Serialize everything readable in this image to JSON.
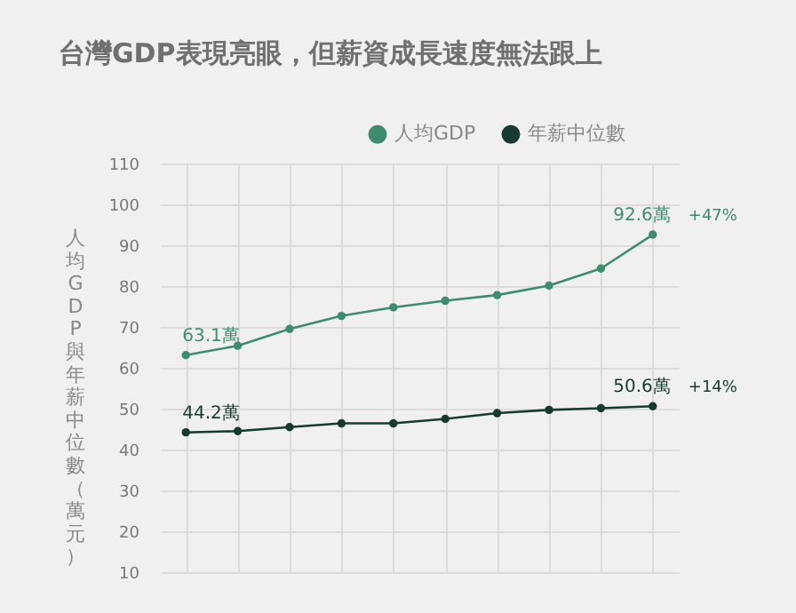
{
  "chart_data": {
    "type": "line",
    "title": "台灣GDP表現亮眼，但薪資成長速度無法跟上",
    "ylabel": "人均GDP與年薪中位數（萬元）",
    "categories": [
      null,
      null,
      null,
      null,
      null,
      null,
      null,
      null,
      null,
      null
    ],
    "series": [
      {
        "name": "人均GDP",
        "color": "#3d8c6f",
        "values": [
          63.1,
          65.4,
          69.5,
          72.7,
          74.8,
          76.4,
          77.8,
          80.1,
          84.3,
          92.6
        ],
        "value_labels": [
          "63.1萬",
          null,
          null,
          null,
          null,
          null,
          null,
          null,
          null,
          "92.6萬"
        ]
      },
      {
        "name": "年薪中位數",
        "color": "#163a2f",
        "values": [
          44.2,
          44.5,
          45.5,
          46.4,
          46.4,
          47.5,
          48.9,
          49.7,
          50.1,
          50.6
        ],
        "value_labels": [
          "44.2萬",
          null,
          null,
          null,
          null,
          null,
          null,
          null,
          null,
          "50.6萬"
        ]
      }
    ],
    "annotations": [
      "+47%",
      "+14%"
    ],
    "ylim": [
      10,
      110
    ],
    "yticks": [
      10,
      20,
      30,
      40,
      50,
      60,
      70,
      80,
      90,
      100,
      110
    ],
    "grid": true,
    "legend": "top",
    "marker": "circle",
    "line_style": "solid",
    "tick_labels": "y"
  }
}
